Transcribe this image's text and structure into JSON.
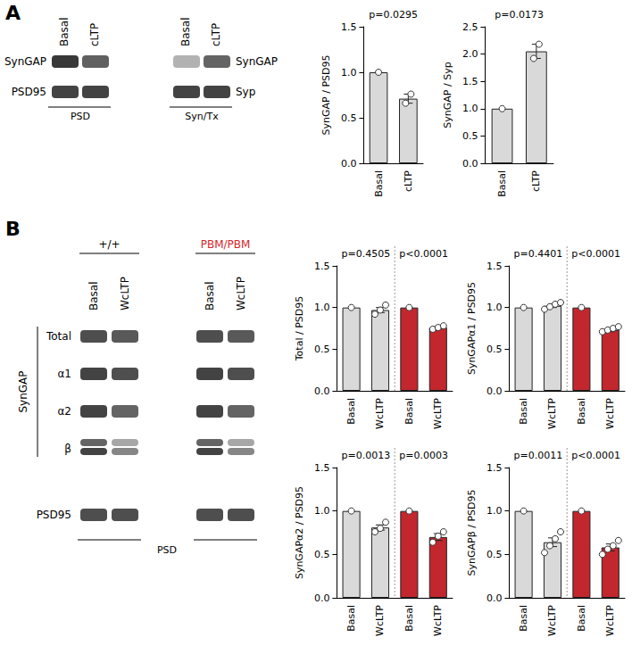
{
  "panel_letters": [
    "A",
    "B"
  ],
  "blots": {
    "A": [
      {
        "lanes": [
          "Basal",
          "cLTP"
        ],
        "rows": [
          "SynGAP",
          "PSD95"
        ],
        "fraction": "PSD"
      },
      {
        "lanes": [
          "Basal",
          "cLTP"
        ],
        "rows": [
          "SynGAP",
          "Syp"
        ],
        "fraction": "Syn/Tx"
      }
    ],
    "B": {
      "groups": [
        {
          "name": "+/+",
          "lanes": [
            "Basal",
            "WcLTP"
          ],
          "color": "#000000"
        },
        {
          "name": "PBM/PBM",
          "lanes": [
            "Basal",
            "WcLTP"
          ],
          "color": "#d7262b"
        }
      ],
      "protein": "SynGAP",
      "rows": [
        "Total",
        "α1",
        "α2",
        "β"
      ],
      "control": "PSD95",
      "fraction": "PSD"
    }
  },
  "chart_data": [
    {
      "type": "bar",
      "title": "p=0.0295",
      "y_label": "SynGAP / PSD95",
      "categories": [
        "Basal",
        "cLTP"
      ],
      "values": [
        1.0,
        0.71
      ],
      "errors": [
        0,
        0.05
      ],
      "points": [
        [
          1.0
        ],
        [
          0.66,
          0.76
        ]
      ],
      "color": "#d9d9d9",
      "ylim": [
        0,
        1.5
      ],
      "yticks": [
        {
          "value": 0,
          "label": "0.0"
        },
        0.5,
        {
          "value": 1,
          "label": "1.0"
        },
        1.5
      ]
    },
    {
      "type": "bar",
      "title": "p=0.0173",
      "y_label": "SynGAP / Syp",
      "categories": [
        "Basal",
        "cLTP"
      ],
      "values": [
        1.0,
        2.05
      ],
      "errors": [
        0,
        0.13
      ],
      "points": [
        [
          1.0
        ],
        [
          1.92,
          2.18
        ]
      ],
      "color": "#d9d9d9",
      "ylim": [
        0,
        2.5
      ],
      "yticks": [
        {
          "value": 0,
          "label": "0.0"
        },
        0.5,
        {
          "value": 1,
          "label": "1.0"
        },
        1.5,
        {
          "value": 2,
          "label": "2.0"
        },
        2.5
      ]
    },
    {
      "type": "bar",
      "annotations": [
        "p=0.4505",
        "p<0.0001"
      ],
      "y_label": "Total / PSD95",
      "categories": [
        "Basal",
        "WcLTP",
        "Basal",
        "WcLTP"
      ],
      "values": [
        1.0,
        0.97,
        1.0,
        0.76
      ],
      "errors": [
        0,
        0.03,
        0,
        0.01
      ],
      "points": [
        [
          1.0
        ],
        [
          0.92,
          0.97,
          1.03
        ],
        [
          1.0
        ],
        [
          0.74,
          0.76,
          0.78
        ]
      ],
      "colors": [
        "#d9d9d9",
        "#d9d9d9",
        "#c1272d",
        "#c1272d"
      ],
      "ylim": [
        0,
        1.5
      ],
      "yticks": [
        {
          "value": 0,
          "label": "0.0"
        },
        0.5,
        {
          "value": 1,
          "label": "1.0"
        },
        1.5
      ]
    },
    {
      "type": "bar",
      "annotations": [
        "p=0.4401",
        "p<0.0001"
      ],
      "y_label": "SynGAPα1 / PSD95",
      "categories": [
        "Basal",
        "WcLTP",
        "Basal",
        "WcLTP"
      ],
      "values": [
        1.0,
        1.02,
        1.0,
        0.73
      ],
      "errors": [
        0,
        0.02,
        0,
        0.02
      ],
      "points": [
        [
          1.0
        ],
        [
          0.98,
          1.01,
          1.04,
          1.06
        ],
        [
          1.0
        ],
        [
          0.71,
          0.73,
          0.75,
          0.77
        ]
      ],
      "colors": [
        "#d9d9d9",
        "#d9d9d9",
        "#c1272d",
        "#c1272d"
      ],
      "ylim": [
        0,
        1.5
      ],
      "yticks": [
        {
          "value": 0,
          "label": "0.0"
        },
        0.5,
        {
          "value": 1,
          "label": "1.0"
        },
        1.5
      ]
    },
    {
      "type": "bar",
      "annotations": [
        "p=0.0013",
        "p=0.0003"
      ],
      "y_label": "SynGAPα2 / PSD95",
      "categories": [
        "Basal",
        "WcLTP",
        "Basal",
        "WcLTP"
      ],
      "values": [
        1.0,
        0.81,
        1.0,
        0.7
      ],
      "errors": [
        0,
        0.03,
        0,
        0.04
      ],
      "points": [
        [
          1.0
        ],
        [
          0.76,
          0.8,
          0.87
        ],
        [
          1.0
        ],
        [
          0.64,
          0.71,
          0.76
        ]
      ],
      "colors": [
        "#d9d9d9",
        "#d9d9d9",
        "#c1272d",
        "#c1272d"
      ],
      "ylim": [
        0,
        1.5
      ],
      "yticks": [
        {
          "value": 0,
          "label": "0.0"
        },
        0.5,
        {
          "value": 1,
          "label": "1.0"
        },
        1.5
      ]
    },
    {
      "type": "bar",
      "annotations": [
        "p=0.0011",
        "p<0.0001"
      ],
      "y_label": "SynGAPβ / PSD95",
      "categories": [
        "Basal",
        "WcLTP",
        "Basal",
        "WcLTP"
      ],
      "values": [
        1.0,
        0.64,
        1.0,
        0.58
      ],
      "errors": [
        0,
        0.05,
        0,
        0.04
      ],
      "points": [
        [
          1.0
        ],
        [
          0.52,
          0.6,
          0.68,
          0.76
        ],
        [
          1.0
        ],
        [
          0.5,
          0.56,
          0.6,
          0.66
        ]
      ],
      "colors": [
        "#d9d9d9",
        "#d9d9d9",
        "#c1272d",
        "#c1272d"
      ],
      "ylim": [
        0,
        1.5
      ],
      "yticks": [
        {
          "value": 0,
          "label": "0.0"
        },
        0.5,
        {
          "value": 1,
          "label": "1.0"
        },
        1.5
      ]
    }
  ]
}
